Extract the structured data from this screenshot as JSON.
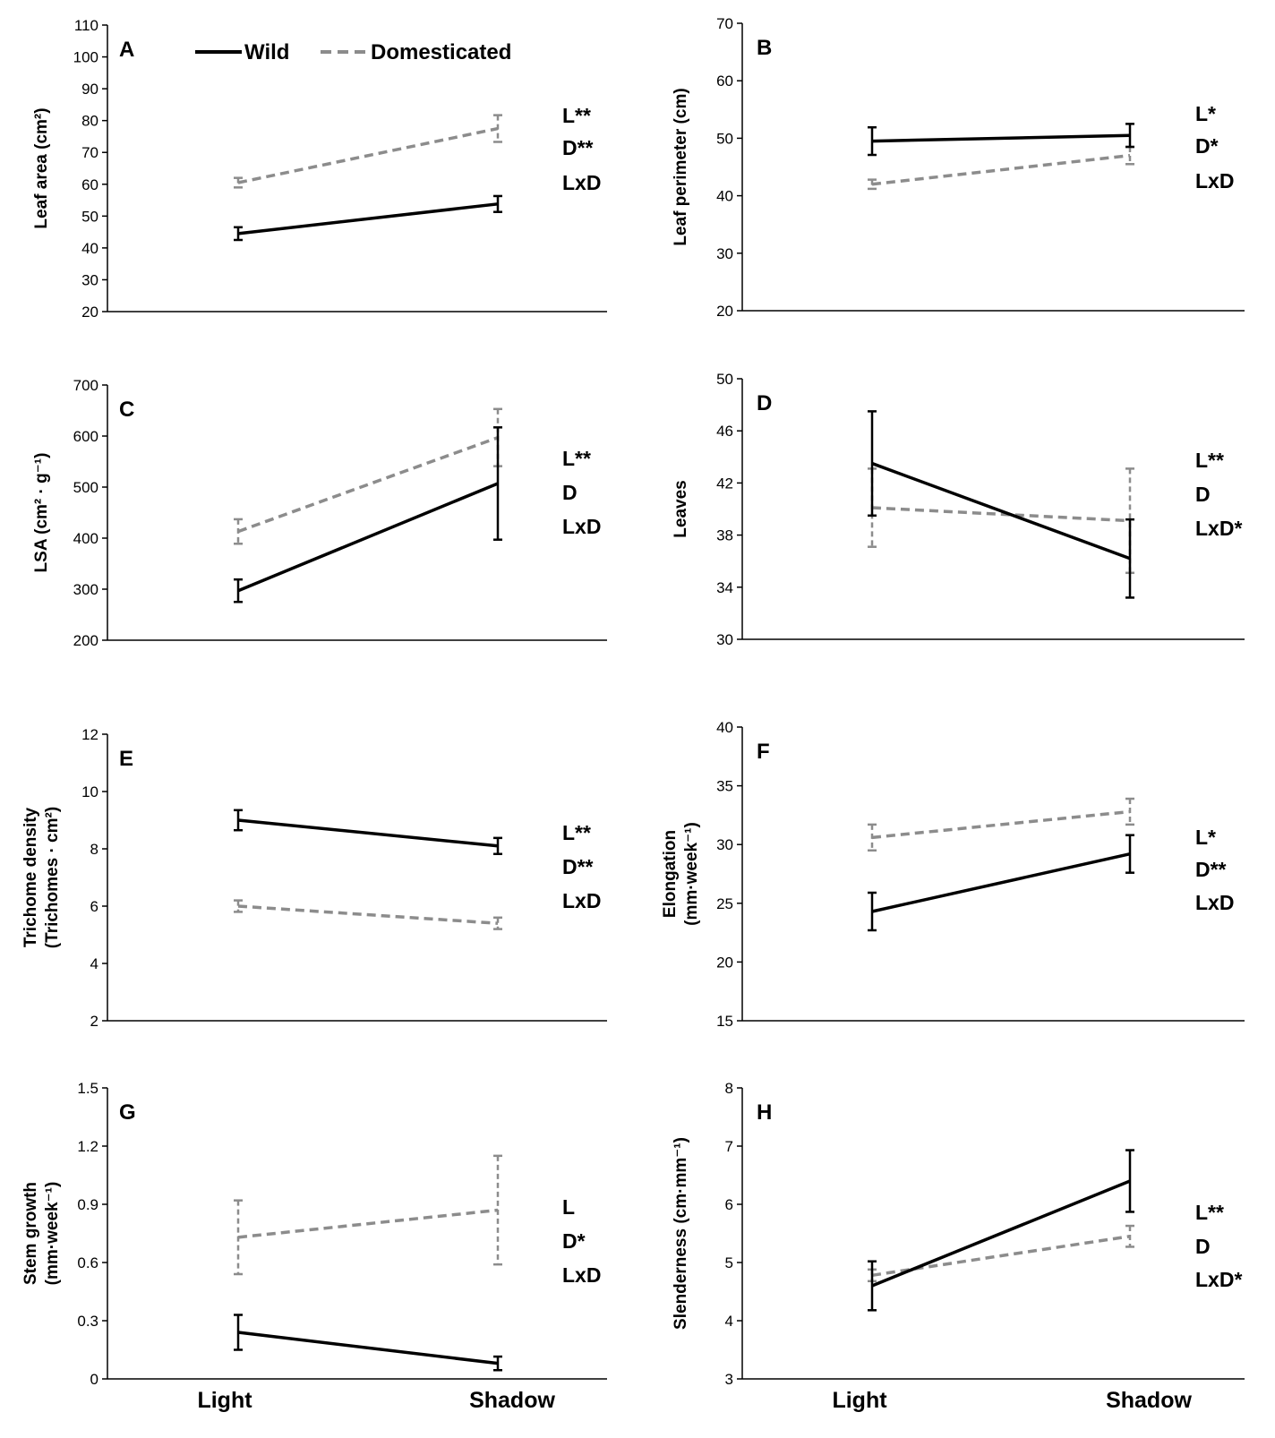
{
  "legend": {
    "wild": "Wild",
    "domesticated": "Domesticated"
  },
  "x_categories": [
    "Light",
    "Shadow"
  ],
  "colors": {
    "wild": "#000000",
    "domesticated": "#8c8c8c"
  },
  "chart_data": [
    {
      "type": "line",
      "panel": "A",
      "ylabel": [
        "Leaf area (cm²)"
      ],
      "ylim": [
        20,
        110
      ],
      "yticks": [
        "20",
        "30",
        "40",
        "50",
        "60",
        "70",
        "80",
        "90",
        "100",
        "110"
      ],
      "categories": [
        "Light",
        "Shadow"
      ],
      "series": [
        {
          "name": "Wild",
          "values": [
            44.5,
            53.8
          ],
          "errors": [
            2.0,
            2.5
          ]
        },
        {
          "name": "Domesticated",
          "values": [
            60.5,
            77.5
          ],
          "errors": [
            1.5,
            4.2
          ]
        }
      ],
      "significance": [
        "L**",
        "D**",
        "LxD"
      ]
    },
    {
      "type": "line",
      "panel": "B",
      "ylabel": [
        "Leaf perimeter (cm)"
      ],
      "ylim": [
        20,
        70
      ],
      "yticks": [
        "20",
        "30",
        "40",
        "50",
        "60",
        "70"
      ],
      "categories": [
        "Light",
        "Shadow"
      ],
      "series": [
        {
          "name": "Wild",
          "values": [
            49.5,
            50.5
          ],
          "errors": [
            2.4,
            2.0
          ]
        },
        {
          "name": "Domesticated",
          "values": [
            42.0,
            47.0
          ],
          "errors": [
            0.8,
            1.5
          ]
        }
      ],
      "significance": [
        "L*",
        "D*",
        "LxD"
      ]
    },
    {
      "type": "line",
      "panel": "C",
      "ylabel": [
        "LSA (cm² · g⁻¹)"
      ],
      "ylim": [
        200,
        700
      ],
      "yticks": [
        "200",
        "300",
        "400",
        "500",
        "600",
        "700"
      ],
      "categories": [
        "Light",
        "Shadow"
      ],
      "series": [
        {
          "name": "Wild",
          "values": [
            297,
            507
          ],
          "errors": [
            22,
            110
          ]
        },
        {
          "name": "Domesticated",
          "values": [
            413,
            597
          ],
          "errors": [
            24,
            56
          ]
        }
      ],
      "significance": [
        "L**",
        "D",
        "LxD"
      ]
    },
    {
      "type": "line",
      "panel": "D",
      "ylabel": [
        "Leaves"
      ],
      "ylim": [
        30,
        50
      ],
      "yticks": [
        "30",
        "34",
        "38",
        "42",
        "46",
        "50"
      ],
      "categories": [
        "Light",
        "Shadow"
      ],
      "series": [
        {
          "name": "Wild",
          "values": [
            43.5,
            36.2
          ],
          "errors": [
            4.0,
            3.0
          ]
        },
        {
          "name": "Domesticated",
          "values": [
            40.1,
            39.1
          ],
          "errors": [
            3.0,
            4.0
          ]
        }
      ],
      "significance": [
        "L**",
        "D",
        "LxD*"
      ]
    },
    {
      "type": "line",
      "panel": "E",
      "ylabel": [
        "Trichome density",
        "(Trichomes · cm²)"
      ],
      "ylim": [
        2,
        12
      ],
      "yticks": [
        "2",
        "4",
        "6",
        "8",
        "10",
        "12"
      ],
      "categories": [
        "Light",
        "Shadow"
      ],
      "series": [
        {
          "name": "Wild",
          "values": [
            9.0,
            8.1
          ],
          "errors": [
            0.35,
            0.28
          ]
        },
        {
          "name": "Domesticated",
          "values": [
            6.0,
            5.4
          ],
          "errors": [
            0.2,
            0.2
          ]
        }
      ],
      "significance": [
        "L**",
        "D**",
        "LxD"
      ]
    },
    {
      "type": "line",
      "panel": "F",
      "ylabel": [
        "Elongation",
        "(mm·week⁻¹)"
      ],
      "ylim": [
        15,
        40
      ],
      "yticks": [
        "15",
        "20",
        "25",
        "30",
        "35",
        "40"
      ],
      "categories": [
        "Light",
        "Shadow"
      ],
      "series": [
        {
          "name": "Wild",
          "values": [
            24.3,
            29.2
          ],
          "errors": [
            1.6,
            1.6
          ]
        },
        {
          "name": "Domesticated",
          "values": [
            30.6,
            32.8
          ],
          "errors": [
            1.1,
            1.1
          ]
        }
      ],
      "significance": [
        "L*",
        "D**",
        "LxD"
      ]
    },
    {
      "type": "line",
      "panel": "G",
      "ylabel": [
        "Stem growth",
        "(mm·week⁻¹)"
      ],
      "ylim": [
        0,
        1.5
      ],
      "yticks": [
        "0",
        "0.3",
        "0.6",
        "0.9",
        "1.2",
        "1.5"
      ],
      "categories": [
        "Light",
        "Shadow"
      ],
      "series": [
        {
          "name": "Wild",
          "values": [
            0.24,
            0.08
          ],
          "errors": [
            0.09,
            0.035
          ]
        },
        {
          "name": "Domesticated",
          "values": [
            0.73,
            0.87
          ],
          "errors": [
            0.19,
            0.28
          ]
        }
      ],
      "significance": [
        "L",
        "D*",
        "LxD"
      ]
    },
    {
      "type": "line",
      "panel": "H",
      "ylabel": [
        "Slenderness  (cm·mm⁻¹)"
      ],
      "ylim": [
        3,
        8
      ],
      "yticks": [
        "3",
        "4",
        "5",
        "6",
        "7",
        "8"
      ],
      "categories": [
        "Light",
        "Shadow"
      ],
      "series": [
        {
          "name": "Wild",
          "values": [
            4.6,
            6.4
          ],
          "errors": [
            0.42,
            0.53
          ]
        },
        {
          "name": "Domesticated",
          "values": [
            4.78,
            5.45
          ],
          "errors": [
            0.1,
            0.18
          ]
        }
      ],
      "significance": [
        "L**",
        "D",
        "LxD*"
      ]
    }
  ]
}
